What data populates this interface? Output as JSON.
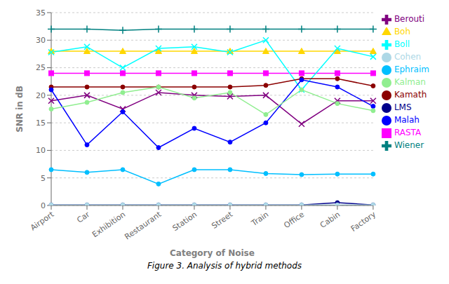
{
  "chart_data": {
    "type": "line",
    "title": "Figure 3. Analysis of hybrid methods",
    "xlabel": "Category of Noise",
    "ylabel": "SNR in dB",
    "categories": [
      "Airport",
      "Car",
      "Exhibition",
      "Restaurant",
      "Station",
      "Street",
      "Train",
      "Office",
      "Cabin",
      "Factory"
    ],
    "series": [
      {
        "name": "LMS",
        "color": "#00008B",
        "marker": "circle",
        "values": [
          0.1,
          0.1,
          0.1,
          0.1,
          0.1,
          0.1,
          0.1,
          0.1,
          0.5,
          0.1
        ]
      },
      {
        "name": "RASTA",
        "color": "#FF00FF",
        "marker": "square",
        "values": [
          24.0,
          24.0,
          24.0,
          24.0,
          24.0,
          24.0,
          24.0,
          24.0,
          24.0,
          24.0
        ]
      },
      {
        "name": "Boh",
        "color": "#FFD700",
        "marker": "triangle",
        "values": [
          28.0,
          28.0,
          28.0,
          28.0,
          28.0,
          28.0,
          28.0,
          28.0,
          28.0,
          28.0
        ]
      },
      {
        "name": "Boll",
        "color": "#00FFFF",
        "marker": "x",
        "values": [
          27.8,
          28.8,
          25.0,
          28.5,
          28.8,
          27.8,
          30.0,
          21.0,
          28.5,
          27.0
        ]
      },
      {
        "name": "Berouti",
        "color": "#800080",
        "marker": "x",
        "values": [
          19.0,
          20.0,
          17.5,
          20.5,
          20.0,
          19.8,
          20.0,
          14.8,
          19.0,
          19.0
        ]
      },
      {
        "name": "Kamath",
        "color": "#8B0000",
        "marker": "circle",
        "values": [
          21.5,
          21.5,
          21.5,
          21.5,
          21.5,
          21.5,
          21.8,
          23.0,
          23.0,
          21.7
        ]
      },
      {
        "name": "Wiener",
        "color": "#008080",
        "marker": "plus",
        "values": [
          32.0,
          32.0,
          31.8,
          32.0,
          32.0,
          32.0,
          32.0,
          32.0,
          32.0,
          32.0
        ]
      },
      {
        "name": "Malah",
        "color": "#0000FF",
        "marker": "circle",
        "values": [
          21.0,
          11.0,
          17.0,
          10.5,
          14.0,
          11.5,
          15.0,
          22.8,
          21.5,
          18.0
        ]
      },
      {
        "name": "Ephraim",
        "color": "#00BFFF",
        "marker": "circle",
        "values": [
          6.5,
          6.0,
          6.5,
          3.9,
          6.5,
          6.5,
          5.8,
          5.6,
          5.7,
          5.7
        ]
      },
      {
        "name": "Cohen",
        "color": "#ADD8E6",
        "marker": "circle",
        "values": [
          0.1,
          0.1,
          0.1,
          0.1,
          0.1,
          0.1,
          0.1,
          0.1,
          0.1,
          0.1
        ]
      },
      {
        "name": "Kalman",
        "color": "#90EE90",
        "marker": "circle",
        "values": [
          17.5,
          18.7,
          20.5,
          21.5,
          19.5,
          20.5,
          16.5,
          21.0,
          18.5,
          17.2
        ]
      }
    ],
    "ylim": [
      0,
      35
    ],
    "yticks": [
      0,
      5,
      10,
      15,
      20,
      25,
      30,
      35
    ],
    "grid": true,
    "legend": "right"
  }
}
